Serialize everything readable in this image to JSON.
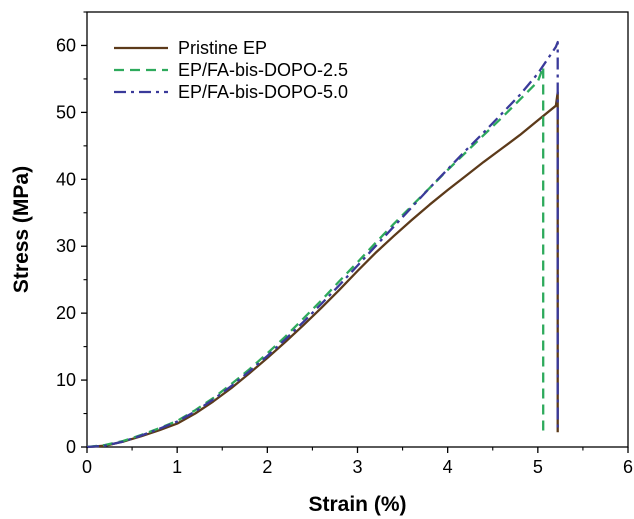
{
  "chart_data": {
    "type": "line",
    "title": "",
    "xlabel": "Strain (%)",
    "ylabel": "Stress (MPa)",
    "xlim": [
      0,
      6
    ],
    "ylim": [
      0,
      65
    ],
    "xticks": [
      "0",
      "1",
      "2",
      "3",
      "4",
      "5",
      "6"
    ],
    "yticks": [
      "0",
      "10",
      "20",
      "30",
      "40",
      "50",
      "60"
    ],
    "grid": false,
    "legend_position": "top-left",
    "series": [
      {
        "name": "Pristine EP",
        "color": "#5c3a1a",
        "dash": "solid",
        "points": [
          [
            0.0,
            0.0
          ],
          [
            0.2,
            0.2
          ],
          [
            0.4,
            0.8
          ],
          [
            0.6,
            1.6
          ],
          [
            0.8,
            2.5
          ],
          [
            1.0,
            3.5
          ],
          [
            1.2,
            5.0
          ],
          [
            1.4,
            6.8
          ],
          [
            1.6,
            8.8
          ],
          [
            1.8,
            11.0
          ],
          [
            2.0,
            13.3
          ],
          [
            2.2,
            15.7
          ],
          [
            2.4,
            18.2
          ],
          [
            2.6,
            20.8
          ],
          [
            2.8,
            23.5
          ],
          [
            3.0,
            26.3
          ],
          [
            3.2,
            29.0
          ],
          [
            3.4,
            31.5
          ],
          [
            3.6,
            33.9
          ],
          [
            3.8,
            36.2
          ],
          [
            4.0,
            38.4
          ],
          [
            4.2,
            40.5
          ],
          [
            4.4,
            42.6
          ],
          [
            4.6,
            44.6
          ],
          [
            4.8,
            46.6
          ],
          [
            5.0,
            48.8
          ],
          [
            5.2,
            51.0
          ],
          [
            5.22,
            53.0
          ],
          [
            5.22,
            2.2
          ]
        ]
      },
      {
        "name": "EP/FA-bis-DOPO-2.5",
        "color": "#2eaa5c",
        "dash": "dashed",
        "points": [
          [
            0.0,
            0.0
          ],
          [
            0.2,
            0.3
          ],
          [
            0.4,
            0.9
          ],
          [
            0.6,
            1.8
          ],
          [
            0.8,
            2.8
          ],
          [
            1.0,
            3.9
          ],
          [
            1.2,
            5.5
          ],
          [
            1.4,
            7.3
          ],
          [
            1.6,
            9.4
          ],
          [
            1.8,
            11.6
          ],
          [
            2.0,
            14.0
          ],
          [
            2.2,
            16.5
          ],
          [
            2.4,
            19.2
          ],
          [
            2.6,
            21.9
          ],
          [
            2.8,
            24.8
          ],
          [
            3.0,
            27.6
          ],
          [
            3.2,
            30.5
          ],
          [
            3.4,
            33.3
          ],
          [
            3.6,
            36.0
          ],
          [
            3.8,
            38.7
          ],
          [
            4.0,
            41.4
          ],
          [
            4.2,
            44.0
          ],
          [
            4.4,
            46.6
          ],
          [
            4.6,
            49.2
          ],
          [
            4.8,
            51.9
          ],
          [
            5.0,
            54.6
          ],
          [
            5.06,
            56.8
          ],
          [
            5.06,
            2.0
          ]
        ]
      },
      {
        "name": "EP/FA-bis-DOPO-5.0",
        "color": "#3a3a9a",
        "dash": "dash-dot",
        "points": [
          [
            0.0,
            0.0
          ],
          [
            0.2,
            0.2
          ],
          [
            0.4,
            0.8
          ],
          [
            0.6,
            1.7
          ],
          [
            0.8,
            2.7
          ],
          [
            1.0,
            3.8
          ],
          [
            1.2,
            5.3
          ],
          [
            1.4,
            7.1
          ],
          [
            1.6,
            9.1
          ],
          [
            1.8,
            11.3
          ],
          [
            2.0,
            13.6
          ],
          [
            2.2,
            16.1
          ],
          [
            2.4,
            18.7
          ],
          [
            2.6,
            21.4
          ],
          [
            2.8,
            24.2
          ],
          [
            3.0,
            27.1
          ],
          [
            3.2,
            30.0
          ],
          [
            3.4,
            32.9
          ],
          [
            3.6,
            35.8
          ],
          [
            3.8,
            38.7
          ],
          [
            4.0,
            41.5
          ],
          [
            4.2,
            44.3
          ],
          [
            4.4,
            47.0
          ],
          [
            4.6,
            49.8
          ],
          [
            4.8,
            52.6
          ],
          [
            5.0,
            55.8
          ],
          [
            5.2,
            59.8
          ],
          [
            5.22,
            60.5
          ],
          [
            5.22,
            2.4
          ]
        ]
      }
    ]
  }
}
